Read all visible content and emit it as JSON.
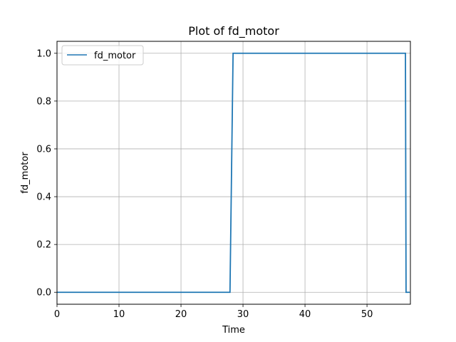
{
  "chart_data": {
    "type": "line",
    "title": "Plot of fd_motor",
    "xlabel": "Time",
    "ylabel": "fd_motor",
    "xlim": [
      0,
      57
    ],
    "ylim": [
      -0.05,
      1.05
    ],
    "xticks": [
      0,
      10,
      20,
      30,
      40,
      50
    ],
    "yticks": [
      0.0,
      0.2,
      0.4,
      0.6,
      0.8,
      1.0
    ],
    "xtick_labels": [
      "0",
      "10",
      "20",
      "30",
      "40",
      "50"
    ],
    "ytick_labels": [
      "0.0",
      "0.2",
      "0.4",
      "0.6",
      "0.8",
      "1.0"
    ],
    "grid": true,
    "legend_position": "top-left",
    "series": [
      {
        "name": "fd_motor",
        "color": "#1f77b4",
        "x": [
          0,
          27.9,
          28.4,
          56.2,
          56.3,
          56.9
        ],
        "y": [
          0,
          0,
          1,
          1,
          0,
          0
        ]
      }
    ]
  }
}
